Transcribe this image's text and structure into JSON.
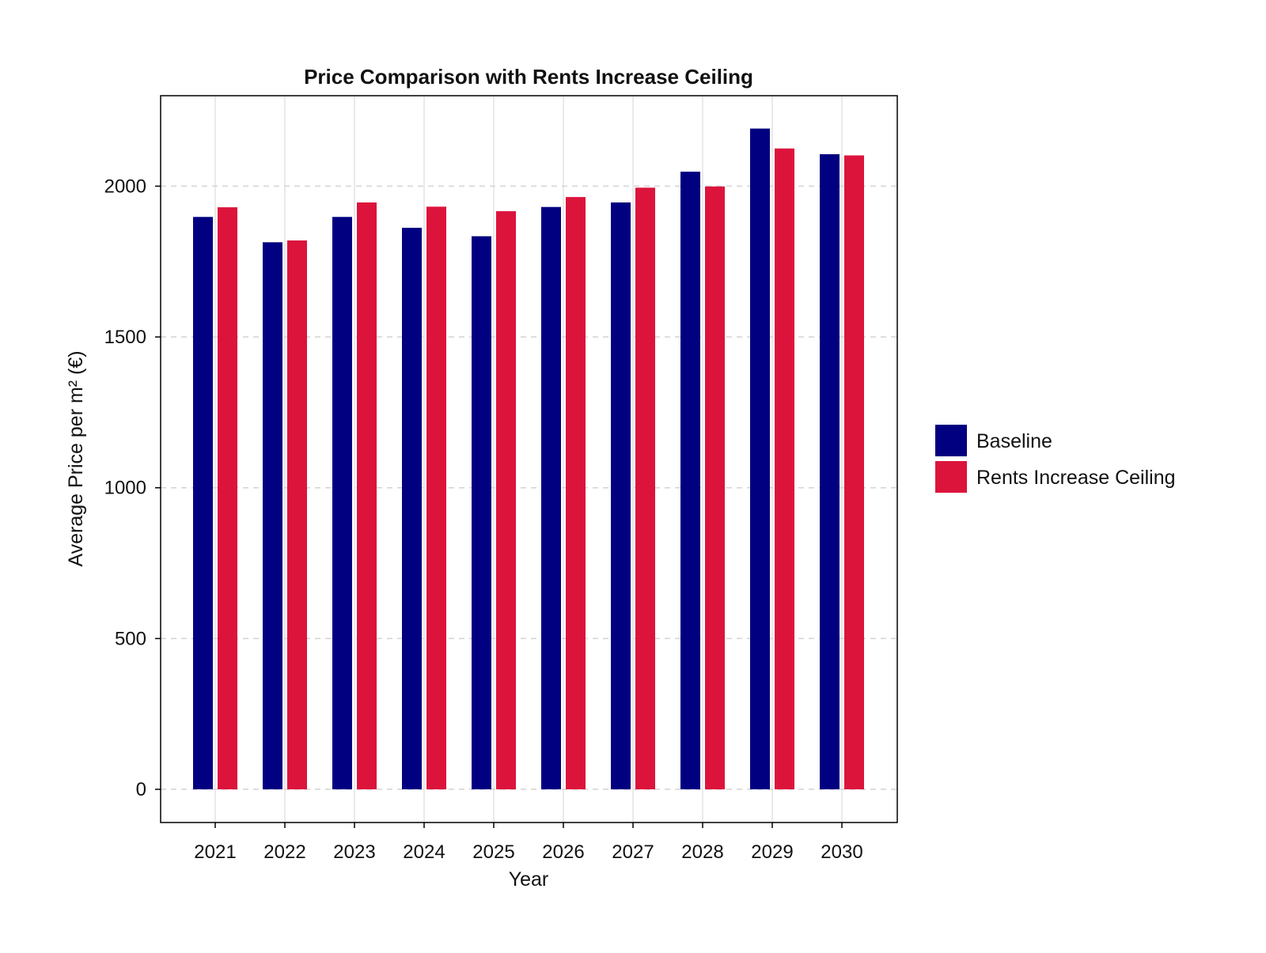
{
  "chart_data": {
    "type": "bar",
    "title": "Price Comparison with Rents Increase Ceiling",
    "xlabel": "Year",
    "ylabel": "Average Price per m² (€)",
    "categories": [
      "2021",
      "2022",
      "2023",
      "2024",
      "2025",
      "2026",
      "2027",
      "2028",
      "2029",
      "2030"
    ],
    "series": [
      {
        "name": "Baseline",
        "color": "#000080",
        "values": [
          1898,
          1814,
          1898,
          1862,
          1834,
          1931,
          1946,
          2048,
          2191,
          2106
        ]
      },
      {
        "name": "Rents Increase Ceiling",
        "color": "#dc143c",
        "values": [
          1930,
          1820,
          1946,
          1932,
          1917,
          1964,
          1995,
          1999,
          2125,
          2102
        ]
      }
    ],
    "ylim": [
      -110,
      2300
    ],
    "yticks": [
      0,
      500,
      1000,
      1500,
      2000
    ],
    "ytick_labels": [
      "0",
      "500",
      "1000",
      "1500",
      "2000"
    ],
    "grid": {
      "x": true,
      "y": true,
      "y_style": "dashed"
    },
    "legend": {
      "position": "right"
    }
  }
}
